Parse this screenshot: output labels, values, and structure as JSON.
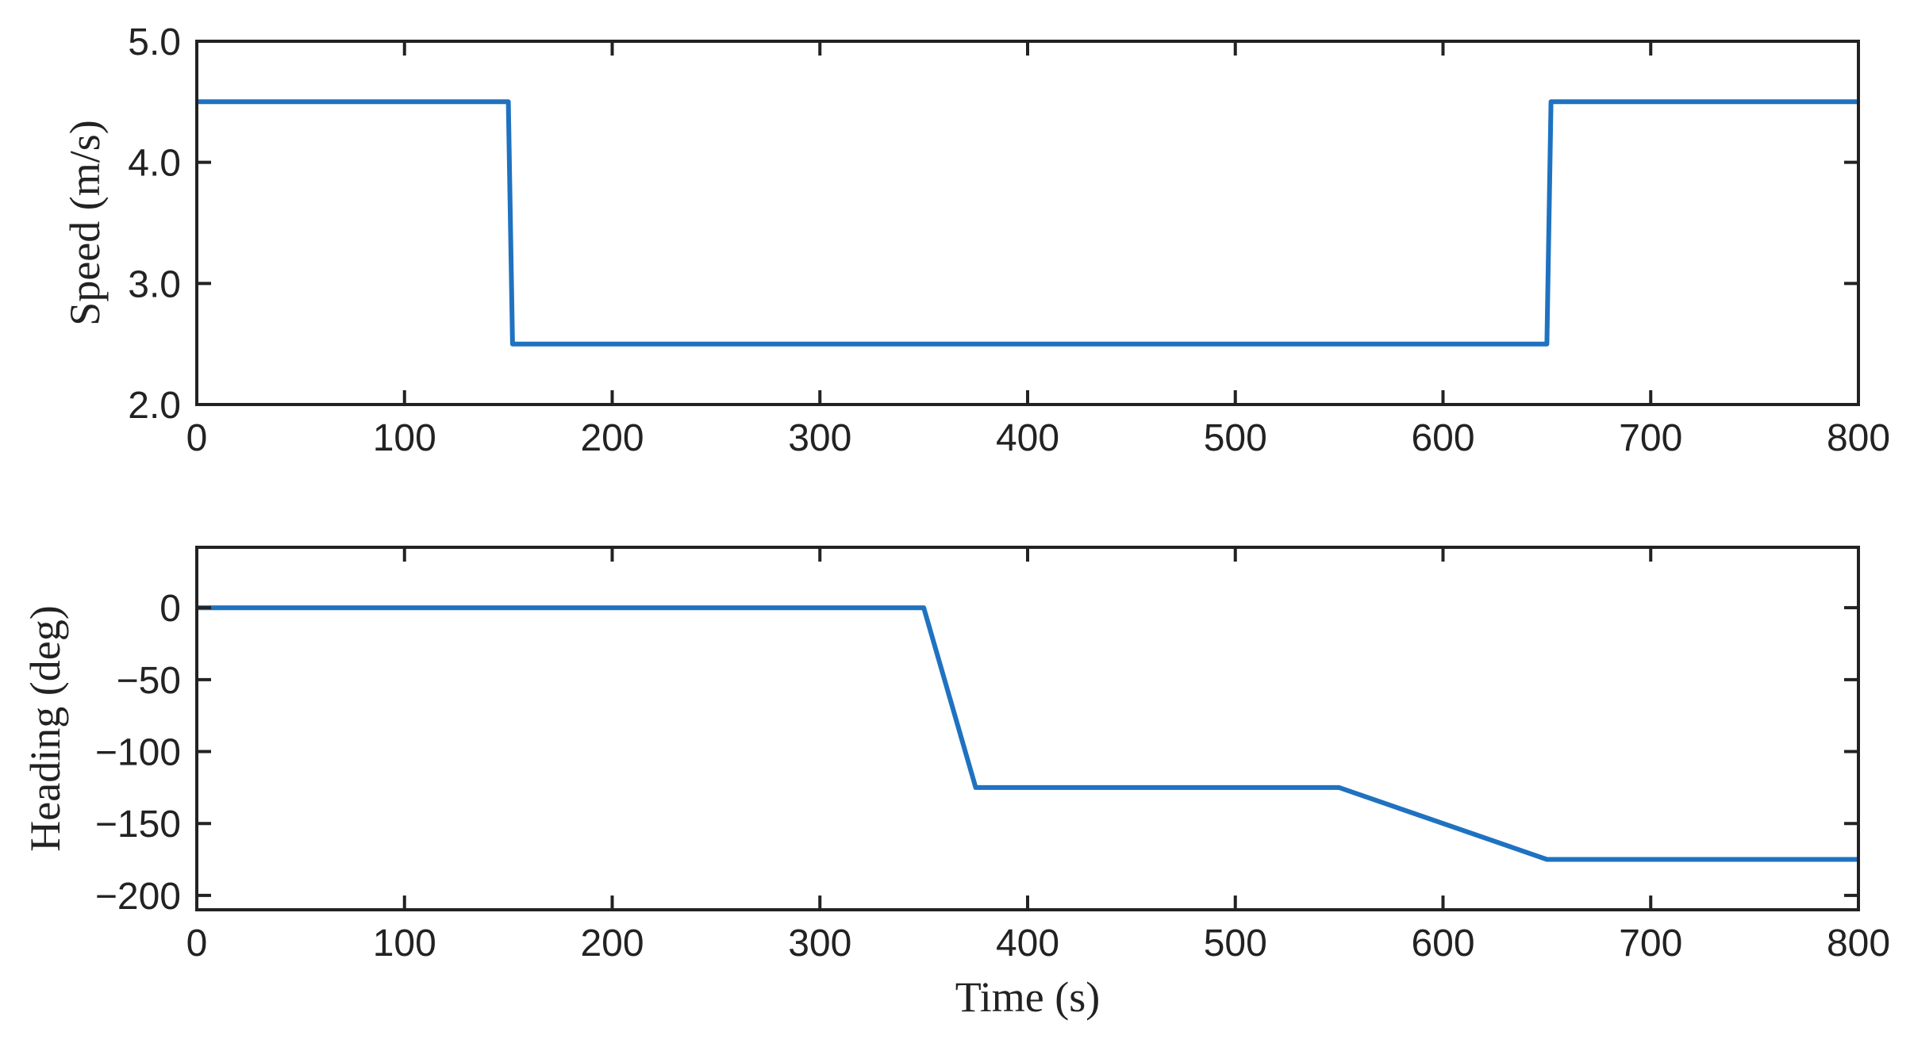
{
  "chart_data": [
    {
      "type": "line",
      "title": "",
      "xlabel": "",
      "ylabel": "Speed (m/s)",
      "xlim": [
        0,
        800
      ],
      "ylim": [
        2.0,
        5.0
      ],
      "xticks": [
        0,
        100,
        200,
        300,
        400,
        500,
        600,
        700,
        800
      ],
      "xtick_labels": [
        "0",
        "100",
        "200",
        "300",
        "400",
        "500",
        "600",
        "700",
        "800"
      ],
      "yticks": [
        2.0,
        3.0,
        4.0,
        5.0
      ],
      "ytick_labels": [
        "2.0",
        "3.0",
        "4.0",
        "5.0"
      ],
      "grid": false,
      "series": [
        {
          "color": "#1f72c0",
          "x": [
            0,
            150,
            152,
            650,
            652,
            800
          ],
          "y": [
            4.5,
            4.5,
            2.5,
            2.5,
            4.5,
            4.5
          ]
        }
      ]
    },
    {
      "type": "line",
      "title": "",
      "xlabel": "Time (s)",
      "ylabel": "Heading (deg)",
      "xlim": [
        0,
        800
      ],
      "ylim": [
        -210,
        42
      ],
      "xticks": [
        0,
        100,
        200,
        300,
        400,
        500,
        600,
        700,
        800
      ],
      "xtick_labels": [
        "0",
        "100",
        "200",
        "300",
        "400",
        "500",
        "600",
        "700",
        "800"
      ],
      "yticks": [
        0,
        -50,
        -100,
        -150,
        -200
      ],
      "ytick_labels": [
        "0",
        "−50",
        "−100",
        "−150",
        "−200"
      ],
      "grid": false,
      "series": [
        {
          "color": "#1f72c0",
          "x": [
            0,
            350,
            375,
            550,
            650,
            800
          ],
          "y": [
            0,
            0,
            -125,
            -125,
            -175,
            -175
          ]
        }
      ]
    }
  ]
}
